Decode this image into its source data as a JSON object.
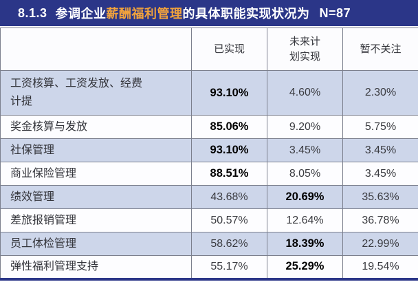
{
  "title": {
    "number": "8.1.3",
    "prefix": "参调企业",
    "highlight": "薪酬福利管理",
    "suffix": "的具体职能实现状况为",
    "sample": "N=87"
  },
  "colors": {
    "title_band_bg": "#2B3688",
    "title_highlight": "#F2A33C",
    "shaded_row_bg": "#CDD6EA",
    "plain_row_bg": "#FDFDFF",
    "cell_border": "#7B7F8D",
    "bottom_border": "#2B3688"
  },
  "table": {
    "columns": [
      "已实现",
      "未来计划实现",
      "暂不关注"
    ],
    "rows": [
      {
        "label": "工资核算、工资发放、经费计提",
        "values": [
          "93.10%",
          "4.60%",
          "2.30%"
        ],
        "bold": 0
      },
      {
        "label": "奖金核算与发放",
        "values": [
          "85.06%",
          "9.20%",
          "5.75%"
        ],
        "bold": 0
      },
      {
        "label": "社保管理",
        "values": [
          "93.10%",
          "3.45%",
          "3.45%"
        ],
        "bold": 0
      },
      {
        "label": "商业保险管理",
        "values": [
          "88.51%",
          "8.05%",
          "3.45%"
        ],
        "bold": 0
      },
      {
        "label": "绩效管理",
        "values": [
          "43.68%",
          "20.69%",
          "35.63%"
        ],
        "bold": 1
      },
      {
        "label": "差旅报销管理",
        "values": [
          "50.57%",
          "12.64%",
          "36.78%"
        ],
        "bold": null
      },
      {
        "label": "员工体检管理",
        "values": [
          "58.62%",
          "18.39%",
          "22.99%"
        ],
        "bold": 1
      },
      {
        "label": "弹性福利管理支持",
        "values": [
          "55.17%",
          "25.29%",
          "19.54%"
        ],
        "bold": 1
      }
    ]
  },
  "chart_data": {
    "type": "table",
    "title": "8.1.3 参调企业薪酬福利管理的具体职能实现状况为 N=87",
    "sample_size": 87,
    "unit": "%",
    "categories": [
      "工资核算、工资发放、经费计提",
      "奖金核算与发放",
      "社保管理",
      "商业保险管理",
      "绩效管理",
      "差旅报销管理",
      "员工体检管理",
      "弹性福利管理支持"
    ],
    "series": [
      {
        "name": "已实现",
        "values": [
          93.1,
          85.06,
          93.1,
          88.51,
          43.68,
          50.57,
          58.62,
          55.17
        ]
      },
      {
        "name": "未来计划实现",
        "values": [
          4.6,
          9.2,
          3.45,
          8.05,
          20.69,
          12.64,
          18.39,
          25.29
        ]
      },
      {
        "name": "暂不关注",
        "values": [
          2.3,
          5.75,
          3.45,
          3.45,
          35.63,
          36.78,
          22.99,
          19.54
        ]
      }
    ]
  }
}
